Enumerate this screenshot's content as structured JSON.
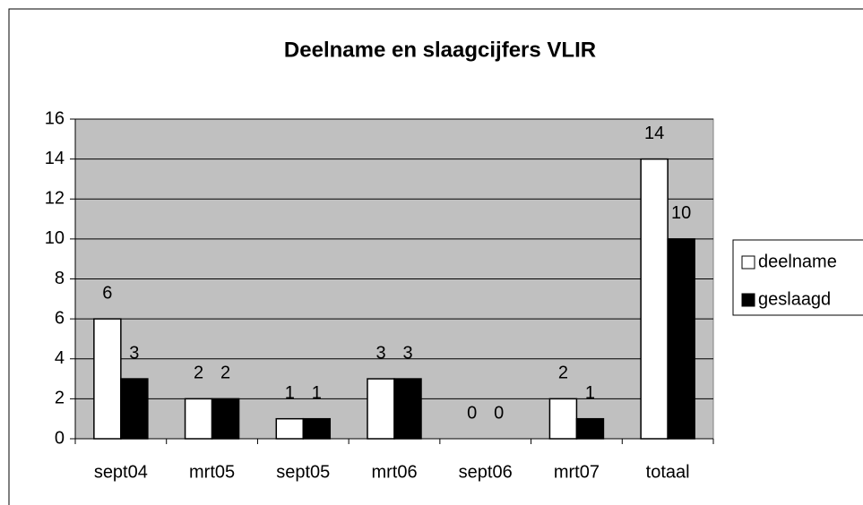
{
  "chart_data": {
    "type": "bar",
    "title": "Deelname en slaagcijfers VLIR",
    "categories": [
      "sept04",
      "mrt05",
      "sept05",
      "mrt06",
      "sept06",
      "mrt07",
      "totaal"
    ],
    "series": [
      {
        "name": "deelname",
        "color": "#ffffff",
        "values": [
          6,
          2,
          1,
          3,
          0,
          2,
          14
        ]
      },
      {
        "name": "geslaagd",
        "color": "#000000",
        "values": [
          3,
          2,
          1,
          3,
          0,
          1,
          10
        ]
      }
    ],
    "ylim": [
      0,
      16
    ],
    "yticks": [
      0,
      2,
      4,
      6,
      8,
      10,
      12,
      14,
      16
    ],
    "grid": true,
    "plot_background": "#c0c0c0",
    "legend": "right"
  }
}
